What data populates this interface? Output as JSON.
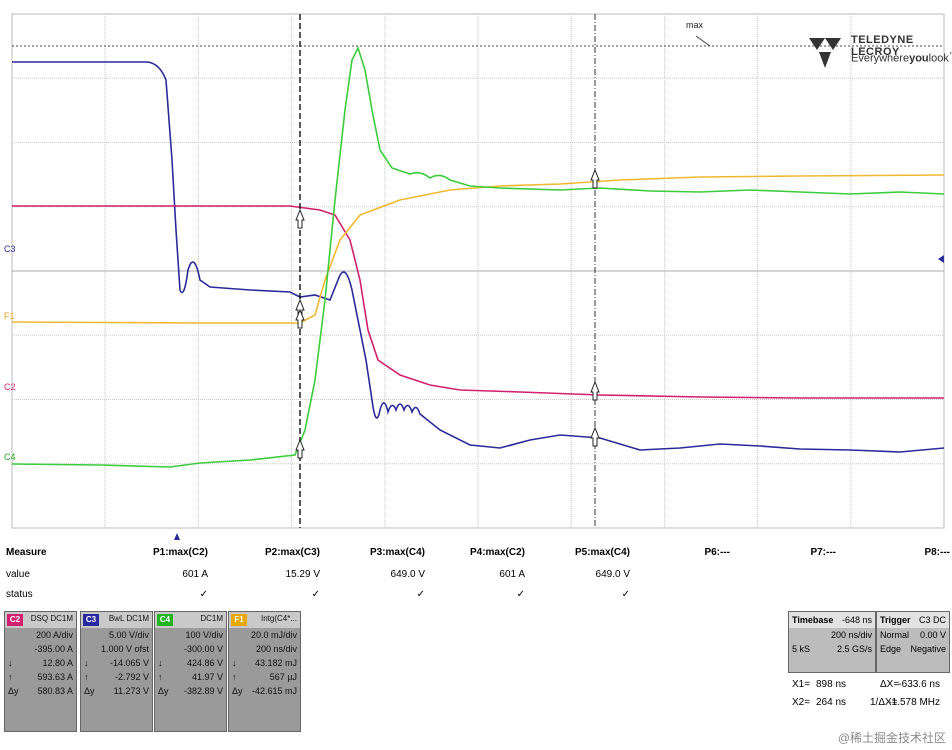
{
  "logo": {
    "brand": "TELEDYNE LECROY",
    "tagline_a": "Everywhere",
    "tagline_b": "you",
    "tagline_c": "look",
    "tm": "™"
  },
  "max_label": "max",
  "channel_markers": {
    "c3": "C3",
    "f1": "F1",
    "c2": "C2",
    "c4": "C4"
  },
  "measure": {
    "row_labels": {
      "measure": "Measure",
      "value": "value",
      "status": "status"
    },
    "params": [
      {
        "name": "P1:max(C2)",
        "value": "601 A",
        "status": "✓"
      },
      {
        "name": "P2:max(C3)",
        "value": "15.29 V",
        "status": "✓"
      },
      {
        "name": "P3:max(C4)",
        "value": "649.0 V",
        "status": "✓"
      },
      {
        "name": "P4:max(C2)",
        "value": "601 A",
        "status": "✓"
      },
      {
        "name": "P5:max(C4)",
        "value": "649.0 V",
        "status": "✓"
      },
      {
        "name": "P6:---",
        "value": "",
        "status": ""
      },
      {
        "name": "P7:---",
        "value": "",
        "status": ""
      },
      {
        "name": "P8:---",
        "value": "",
        "status": ""
      }
    ]
  },
  "channels": [
    {
      "badge": "C2",
      "color": "#d0206f",
      "title": "DSQ DC1M",
      "lines": [
        {
          "pre": "",
          "val": "200 A/div"
        },
        {
          "pre": "",
          "val": "-395.00 A"
        },
        {
          "pre": "↓",
          "val": "12.80 A"
        },
        {
          "pre": "↑",
          "val": "593.63 A"
        },
        {
          "pre": "Δy",
          "val": "580.83 A"
        }
      ]
    },
    {
      "badge": "C3",
      "color": "#2a2aa0",
      "title": "BwL DC1M",
      "lines": [
        {
          "pre": "",
          "val": "5.00 V/div"
        },
        {
          "pre": "",
          "val": "1.000 V ofst"
        },
        {
          "pre": "↓",
          "val": "-14.065 V"
        },
        {
          "pre": "↑",
          "val": "-2.792 V"
        },
        {
          "pre": "Δy",
          "val": "11.273 V"
        }
      ]
    },
    {
      "badge": "C4",
      "color": "#22b422",
      "title": "DC1M",
      "lines": [
        {
          "pre": "",
          "val": "100 V/div"
        },
        {
          "pre": "",
          "val": "-300.00 V"
        },
        {
          "pre": "↓",
          "val": "424.86 V"
        },
        {
          "pre": "↑",
          "val": "41.97 V"
        },
        {
          "pre": "Δy",
          "val": "-382.89 V"
        }
      ]
    },
    {
      "badge": "F1",
      "color": "#e8a800",
      "title": "Intg(C4*...",
      "lines": [
        {
          "pre": "",
          "val": "20.0 mJ/div"
        },
        {
          "pre": "",
          "val": "200 ns/div"
        },
        {
          "pre": "↓",
          "val": "43.182 mJ"
        },
        {
          "pre": "↑",
          "val": "567 µJ"
        },
        {
          "pre": "Δy",
          "val": "-42.615 mJ"
        }
      ]
    }
  ],
  "timebase": {
    "title": "Timebase",
    "offset": "-648 ns",
    "rate": "200 ns/div",
    "samples": "5 kS",
    "srate": "2.5 GS/s"
  },
  "trigger": {
    "title": "Trigger",
    "src": "C3 DC",
    "mode": "Normal",
    "level": "0.00 V",
    "type": "Edge",
    "slope": "Negative"
  },
  "cursors": {
    "x1_label": "X1=",
    "x1": "898 ns",
    "dx_label": "ΔX=",
    "dx": "-633.6 ns",
    "x2_label": "X2=",
    "x2": "264 ns",
    "inv_label": "1/ΔX=",
    "inv": "-1.578 MHz"
  },
  "watermark": "@稀土掘金技术社区",
  "colors": {
    "c2": "#d0206f",
    "c3": "#2a2a9a",
    "c4": "#3ccc3c",
    "f1": "#f0b830",
    "grid": "#c8c8c8"
  }
}
